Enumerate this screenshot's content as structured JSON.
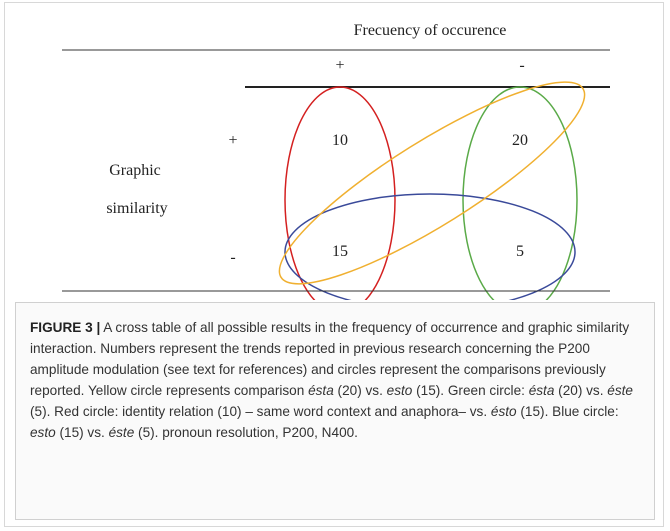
{
  "table": {
    "column_header": "Frecuency of occurence",
    "columns": [
      "+",
      "-"
    ],
    "row_header": [
      "Graphic",
      "similarity"
    ],
    "rows": [
      {
        "label": "+",
        "cells": [
          "10",
          "20"
        ]
      },
      {
        "label": "-",
        "cells": [
          "15",
          "5"
        ]
      }
    ]
  },
  "caption": {
    "label": "FIGURE 3 |",
    "parts": [
      {
        "text": " A cross table of all possible results in the frequency of occurrence and graphic similarity interaction. Numbers represent the trends reported in previous research concerning the P200 amplitude modulation (see text for references) and circles represent the comparisons previously reported. Yellow circle represents comparison "
      },
      {
        "text": "ésta",
        "italic": true
      },
      {
        "text": " (20) vs. "
      },
      {
        "text": "esto",
        "italic": true
      },
      {
        "text": " (15). Green circle: "
      },
      {
        "text": "ésta",
        "italic": true
      },
      {
        "text": " (20) vs. "
      },
      {
        "text": "éste",
        "italic": true
      },
      {
        "text": " (5). Red circle: identity relation (10) – same word context and anaphora– vs. "
      },
      {
        "text": "ésto",
        "italic": true
      },
      {
        "text": " (15). Blue circle: "
      },
      {
        "text": "esto",
        "italic": true
      },
      {
        "text": " (15) vs. "
      },
      {
        "text": "éste",
        "italic": true
      },
      {
        "text": " (5). pronoun resolution, P200, N400."
      }
    ]
  }
}
